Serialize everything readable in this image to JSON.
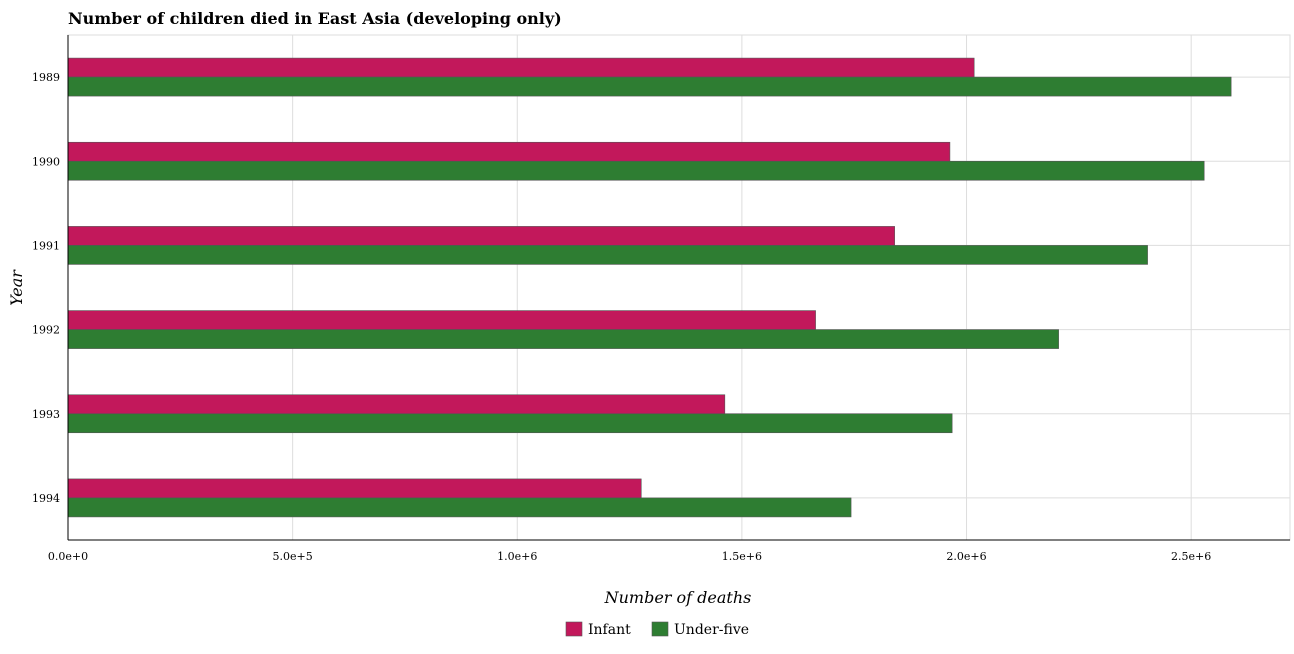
{
  "chart_data": {
    "type": "bar",
    "orientation": "horizontal",
    "title": "Number of children died in East Asia (developing only)",
    "xlabel": "Number of deaths",
    "ylabel": "Year",
    "categories": [
      "1989",
      "1990",
      "1991",
      "1992",
      "1993",
      "1994"
    ],
    "series": [
      {
        "name": "Infant",
        "color": "#c2185b",
        "values": [
          2017000,
          1963000,
          1840000,
          1664000,
          1462000,
          1276000
        ]
      },
      {
        "name": "Under-five",
        "color": "#2e7d32",
        "values": [
          2589000,
          2529000,
          2403000,
          2205000,
          1968000,
          1743000
        ]
      }
    ],
    "xlim": [
      0,
      2720000
    ],
    "xticks": [
      {
        "value": 0,
        "label": "0.0e+0"
      },
      {
        "value": 500000,
        "label": "5.0e+5"
      },
      {
        "value": 1000000,
        "label": "1.0e+6"
      },
      {
        "value": 1500000,
        "label": "1.5e+6"
      },
      {
        "value": 2000000,
        "label": "2.0e+6"
      },
      {
        "value": 2500000,
        "label": "2.5e+6"
      }
    ],
    "grid": true,
    "legend_position": "bottom-center"
  }
}
